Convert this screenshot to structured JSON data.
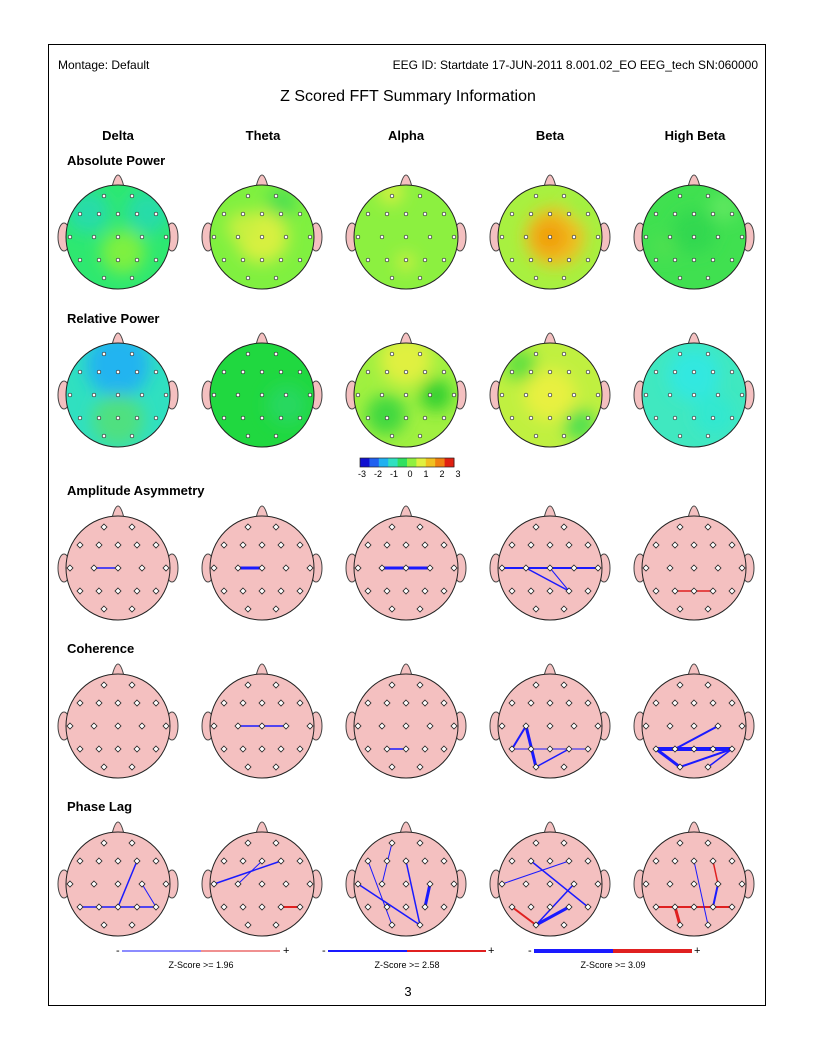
{
  "header": {
    "montage": "Montage:  Default",
    "eeg_id": "EEG ID:  Startdate 17-JUN-2011 8.001.02_EO EEG_tech SN:060000"
  },
  "title": "Z Scored FFT Summary Information",
  "bands": [
    "Delta",
    "Theta",
    "Alpha",
    "Beta",
    "High Beta"
  ],
  "rows": [
    "Absolute Power",
    "Relative Power",
    "Amplitude Asymmetry",
    "Coherence",
    "Phase Lag"
  ],
  "colorbar": {
    "ticks": [
      "-3",
      "-2",
      "-1",
      "0",
      "1",
      "2",
      "3"
    ]
  },
  "legends": [
    {
      "minus": "-",
      "plus": "+",
      "label": "Z-Score >= 1.96"
    },
    {
      "minus": "-",
      "plus": "+",
      "label": "Z-Score >= 2.58"
    },
    {
      "minus": "-",
      "plus": "+",
      "label": "Z-Score >= 3.09"
    }
  ],
  "page_number": "3",
  "colors": {
    "head_fill": "#f4c0c0",
    "blue_line": "#1a1aff",
    "red_line": "#e02020"
  }
}
